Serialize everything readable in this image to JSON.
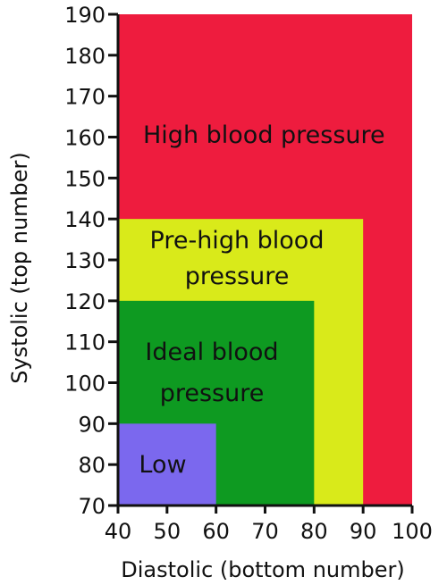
{
  "chart_data": {
    "type": "heatmap",
    "title": "",
    "xlabel": "Diastolic (bottom number)",
    "ylabel": "Systolic (top number)",
    "xlim": [
      40,
      100
    ],
    "ylim": [
      70,
      190
    ],
    "x_ticks": [
      "40",
      "50",
      "60",
      "70",
      "80",
      "90",
      "100"
    ],
    "y_ticks": [
      "70",
      "80",
      "90",
      "100",
      "110",
      "120",
      "130",
      "140",
      "150",
      "160",
      "170",
      "180",
      "190"
    ],
    "regions": [
      {
        "name": "High blood pressure",
        "label_lines": [
          "High blood pressure"
        ],
        "x": [
          40,
          100
        ],
        "y": [
          70,
          190
        ],
        "color": "#ee1c3e"
      },
      {
        "name": "Pre-high blood pressure",
        "label_lines": [
          "Pre-high blood",
          "pressure"
        ],
        "x": [
          40,
          90
        ],
        "y": [
          70,
          140
        ],
        "color": "#d9ea1a"
      },
      {
        "name": "Ideal blood pressure",
        "label_lines": [
          "Ideal blood",
          "pressure"
        ],
        "x": [
          40,
          80
        ],
        "y": [
          70,
          120
        ],
        "color": "#0e9a21"
      },
      {
        "name": "Low",
        "label_lines": [
          "Low"
        ],
        "x": [
          40,
          60
        ],
        "y": [
          70,
          90
        ],
        "color": "#7b68ee"
      }
    ]
  }
}
